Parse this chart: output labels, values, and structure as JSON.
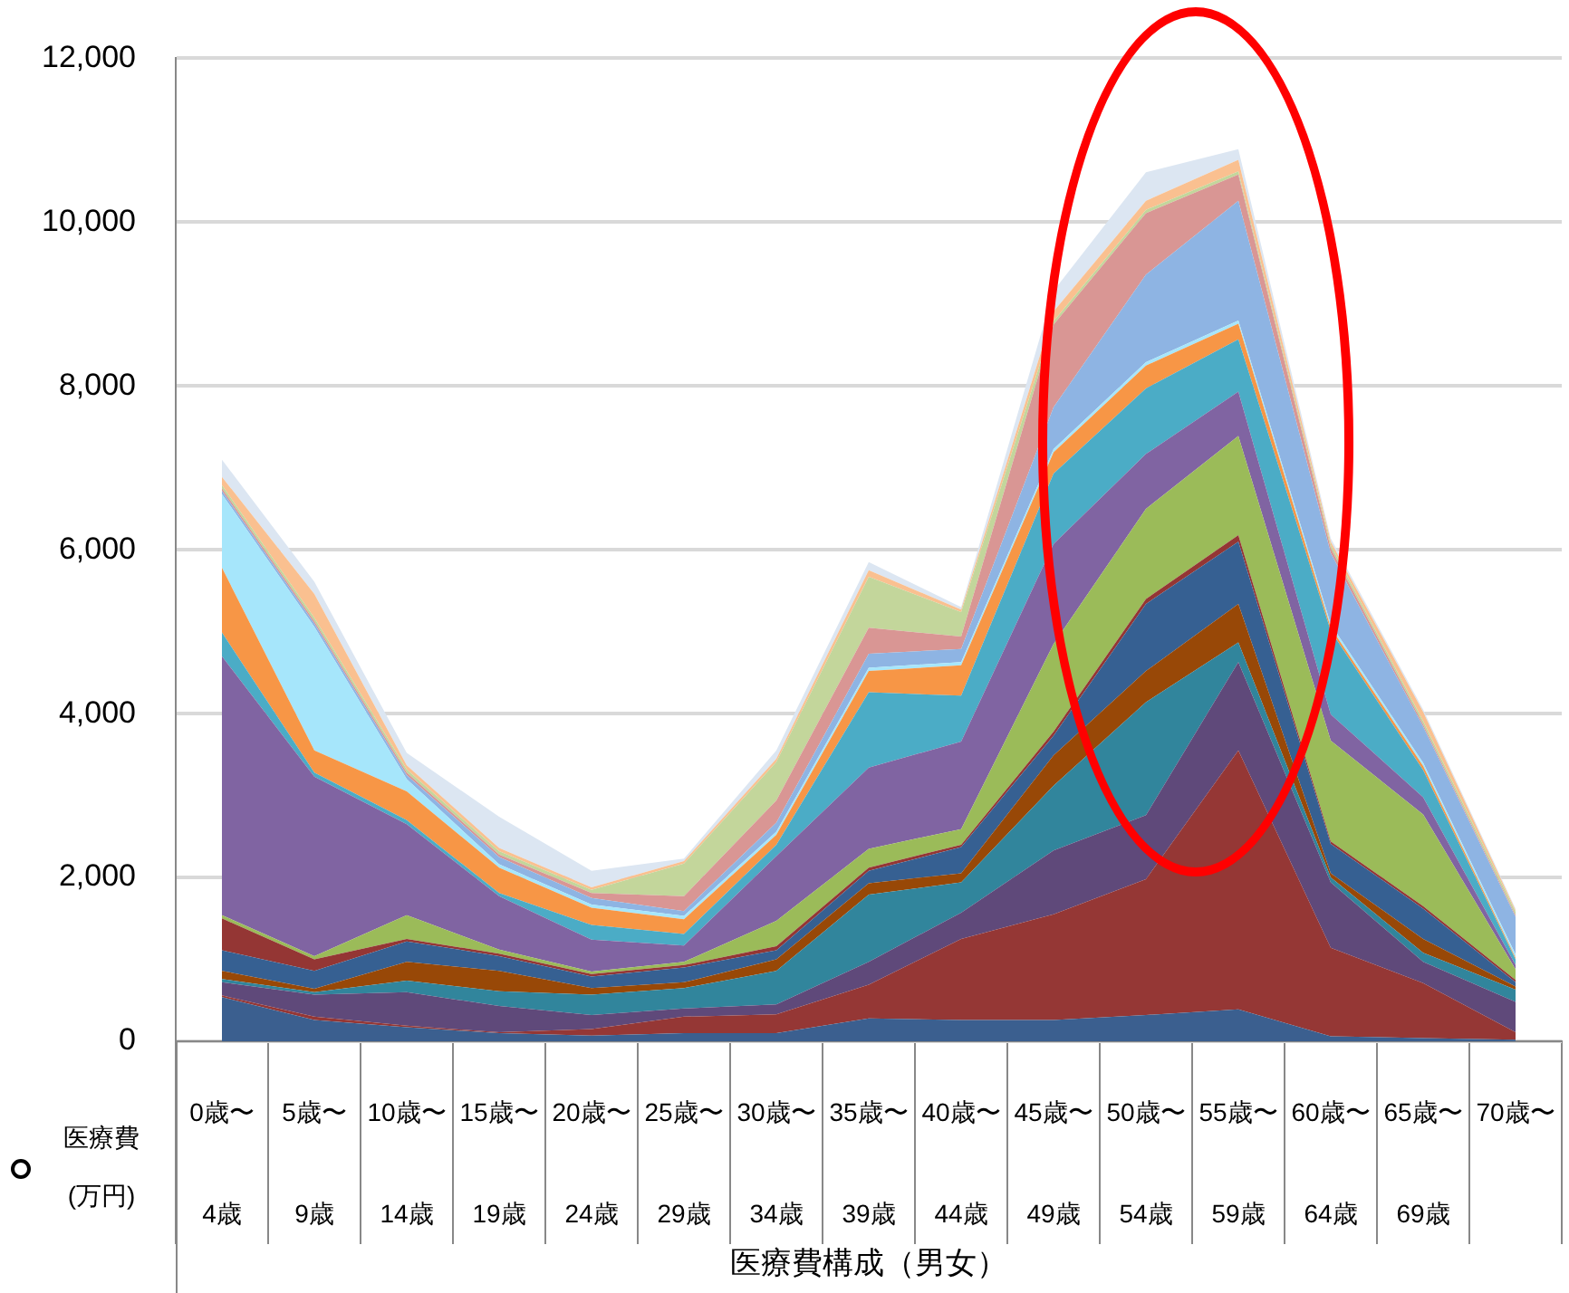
{
  "chart_data": {
    "type": "area",
    "stacked": true,
    "annotations": [
      "医療費構成（男女）"
    ],
    "ylabel": "医療費(万円)",
    "categories": [
      "0歳〜\n4歳",
      "5歳〜\n9歳",
      "10歳〜\n14歳",
      "15歳〜\n19歳",
      "20歳〜\n24歳",
      "25歳〜\n29歳",
      "30歳〜\n34歳",
      "35歳〜\n39歳",
      "40歳〜\n44歳",
      "45歳〜\n49歳",
      "50歳〜\n54歳",
      "55歳〜\n59歳",
      "60歳〜\n64歳",
      "65歳〜\n69歳",
      "70歳〜"
    ],
    "ylim": [
      0,
      12000
    ],
    "yticks": [
      0,
      {
        "value": 2000,
        "label": "2,000"
      },
      {
        "value": 4000,
        "label": "4,000"
      },
      {
        "value": 6000,
        "label": "6,000"
      },
      {
        "value": 8000,
        "label": "8,000"
      },
      {
        "value": 10000,
        "label": "10,000"
      },
      {
        "value": 12000,
        "label": "12,000"
      }
    ],
    "grid": "y",
    "series": [
      {
        "color": "#3b5f8f",
        "values": [
          540,
          260,
          170,
          100,
          70,
          100,
          100,
          280,
          260,
          260,
          320,
          390,
          60,
          40,
          20
        ]
      },
      {
        "color": "#953735",
        "values": [
          20,
          40,
          20,
          10,
          80,
          200,
          230,
          410,
          990,
          1290,
          1660,
          3160,
          1080,
          670,
          90
        ]
      },
      {
        "color": "#5f497a",
        "values": [
          160,
          270,
          410,
          320,
          170,
          100,
          120,
          280,
          320,
          780,
          780,
          1080,
          800,
          260,
          370
        ]
      },
      {
        "color": "#31859c",
        "values": [
          40,
          30,
          140,
          180,
          250,
          250,
          410,
          820,
          370,
          790,
          1380,
          240,
          60,
          110,
          150
        ]
      },
      {
        "color": "#984807",
        "values": [
          100,
          40,
          230,
          250,
          80,
          70,
          140,
          140,
          110,
          370,
          380,
          470,
          50,
          170,
          40
        ]
      },
      {
        "color": "#366092",
        "values": [
          250,
          220,
          250,
          180,
          140,
          180,
          110,
          150,
          320,
          240,
          820,
          760,
          360,
          370,
          50
        ]
      },
      {
        "color": "#943634",
        "values": [
          390,
          140,
          30,
          30,
          30,
          30,
          50,
          40,
          30,
          50,
          60,
          80,
          30,
          30,
          30
        ]
      },
      {
        "color": "#9bbb59",
        "values": [
          40,
          40,
          290,
          50,
          30,
          40,
          310,
          230,
          190,
          1070,
          1100,
          1210,
          1230,
          1120,
          130
        ]
      },
      {
        "color": "#8064a2",
        "values": [
          3160,
          2190,
          1110,
          650,
          390,
          200,
          790,
          990,
          1070,
          1220,
          670,
          540,
          320,
          210,
          50
        ]
      },
      {
        "color": "#4bacc6",
        "values": [
          290,
          50,
          50,
          40,
          180,
          140,
          140,
          920,
          560,
          860,
          800,
          640,
          1020,
          330,
          70
        ]
      },
      {
        "color": "#f79646",
        "values": [
          790,
          270,
          350,
          310,
          210,
          180,
          120,
          260,
          370,
          260,
          280,
          190,
          40,
          50,
          20
        ]
      },
      {
        "color": "#a6e6fb",
        "values": [
          900,
          1510,
          150,
          40,
          40,
          40,
          40,
          40,
          40,
          40,
          40,
          40,
          40,
          40,
          40
        ]
      },
      {
        "color": "#8eb4e3",
        "values": [
          40,
          40,
          50,
          90,
          80,
          60,
          110,
          170,
          160,
          510,
          1070,
          1460,
          870,
          440,
          460
        ]
      },
      {
        "color": "#d99694",
        "values": [
          30,
          30,
          30,
          30,
          60,
          180,
          270,
          320,
          150,
          1010,
          750,
          320,
          60,
          30,
          20
        ]
      },
      {
        "color": "#c3d69b",
        "values": [
          40,
          40,
          40,
          40,
          40,
          400,
          470,
          620,
          300,
          40,
          40,
          40,
          40,
          40,
          40
        ]
      },
      {
        "color": "#fac090",
        "values": [
          100,
          290,
          50,
          40,
          30,
          30,
          40,
          80,
          30,
          120,
          110,
          140,
          40,
          110,
          20
        ]
      },
      {
        "color": "#dce6f2",
        "values": [
          210,
          150,
          150,
          380,
          200,
          30,
          100,
          100,
          30,
          250,
          350,
          130,
          40,
          30,
          20
        ]
      }
    ]
  }
}
